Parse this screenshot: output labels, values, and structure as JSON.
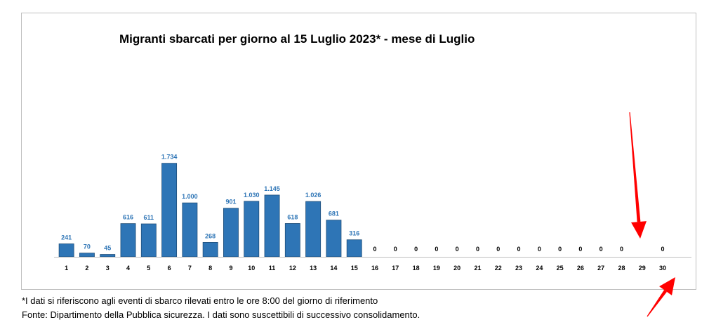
{
  "chart_data": {
    "type": "bar",
    "title": "Migranti sbarcati per giorno al 15 Luglio 2023* - mese di Luglio",
    "xlabel": "",
    "ylabel": "",
    "categories": [
      "1",
      "2",
      "3",
      "4",
      "5",
      "6",
      "7",
      "8",
      "9",
      "10",
      "11",
      "12",
      "13",
      "14",
      "15",
      "16",
      "17",
      "18",
      "19",
      "20",
      "21",
      "22",
      "23",
      "24",
      "25",
      "26",
      "27",
      "28",
      "29",
      "30"
    ],
    "values": [
      241,
      70,
      45,
      616,
      611,
      1734,
      1000,
      268,
      901,
      1030,
      1145,
      618,
      1026,
      681,
      316,
      0,
      0,
      0,
      0,
      0,
      0,
      0,
      0,
      0,
      0,
      0,
      0,
      0,
      null,
      0
    ],
    "value_labels": [
      "241",
      "70",
      "45",
      "616",
      "611",
      "1.734",
      "1.000",
      "268",
      "901",
      "1.030",
      "1.145",
      "618",
      "1.026",
      "681",
      "316",
      "0",
      "0",
      "0",
      "0",
      "0",
      "0",
      "0",
      "0",
      "0",
      "0",
      "0",
      "0",
      "0",
      "",
      "0"
    ],
    "ylim": [
      0,
      4500
    ],
    "grid": false,
    "legend": "none",
    "bar_color": "#2e75b6",
    "nonzero_label_color": "#2e75b6",
    "zero_label_color": "#000000",
    "arrow_color": "#ff0000"
  },
  "footnotes": {
    "line1": "*I dati si riferiscono agli eventi di sbarco rilevati entro le ore 8:00 del giorno di riferimento",
    "line2": "Fonte: Dipartimento della Pubblica sicurezza. I dati sono suscettibili di successivo consolidamento."
  }
}
